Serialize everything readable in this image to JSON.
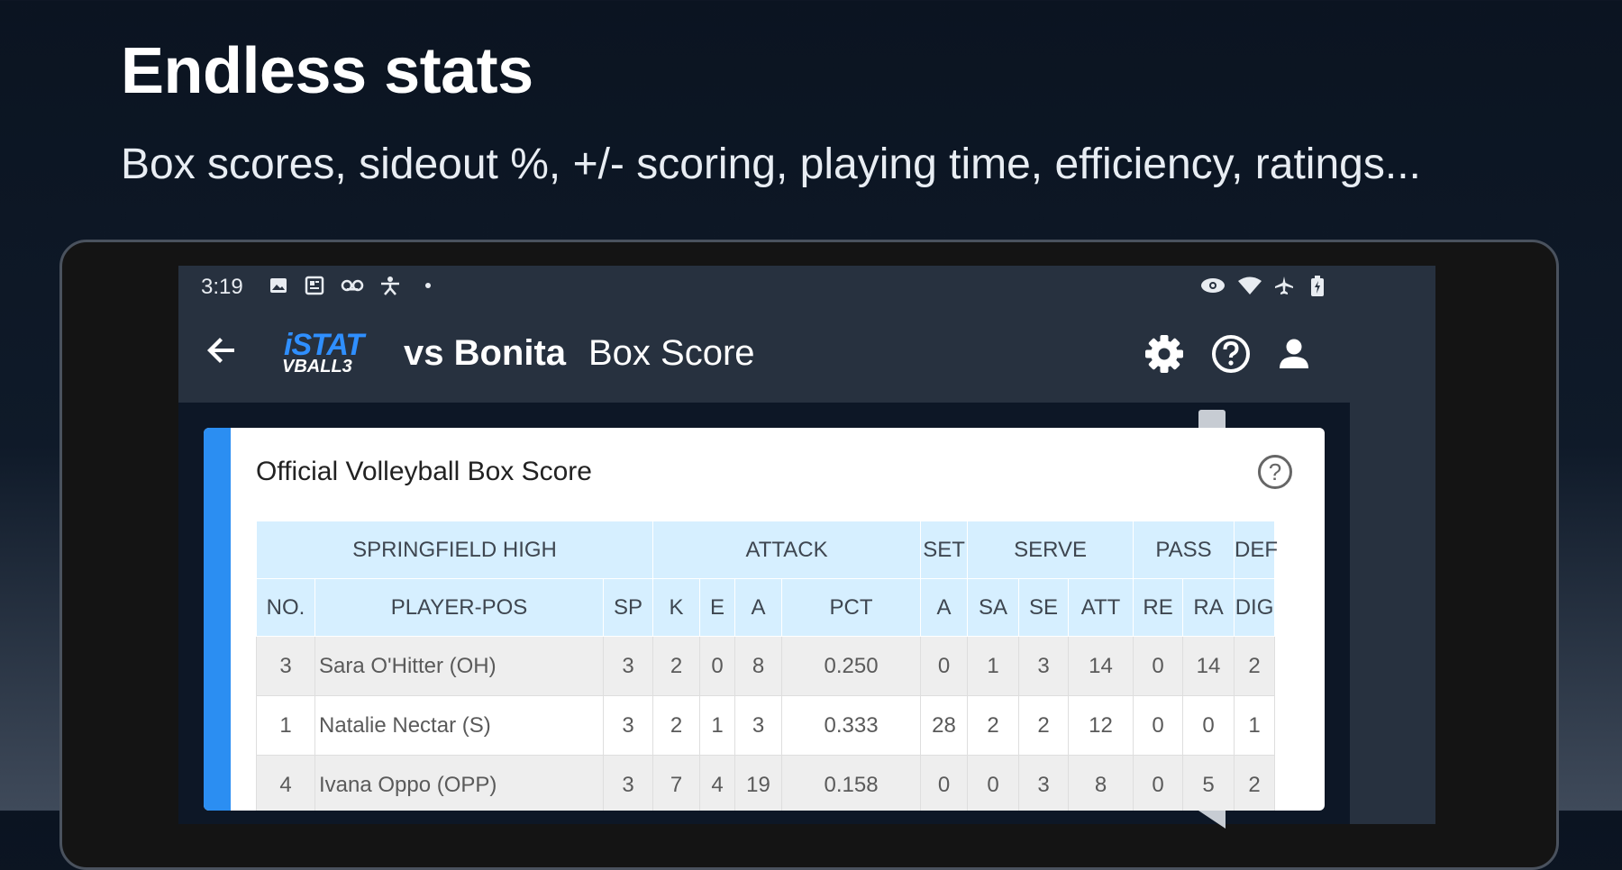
{
  "headline": "Endless stats",
  "subheadline": "Box scores, sideout %, +/- scoring, playing time, efficiency, ratings...",
  "statusbar": {
    "time": "3:19",
    "left_icons": [
      "image-icon",
      "news-icon",
      "voicemail-icon",
      "accessibility-icon",
      "dot-icon"
    ],
    "right_icons": [
      "eye-icon",
      "wifi-icon",
      "airplane-icon",
      "battery-icon"
    ]
  },
  "appbar": {
    "logo_line1": "iSTAT",
    "logo_line2": "VBALL3",
    "opponent": "vs Bonita",
    "title": "Box Score",
    "actions": [
      "settings-icon",
      "help-icon",
      "account-icon"
    ]
  },
  "card": {
    "title": "Official Volleyball Box Score",
    "help_glyph": "?"
  },
  "table": {
    "group_headers": [
      "SPRINGFIELD HIGH",
      "ATTACK",
      "SET",
      "SERVE",
      "PASS",
      "DEF"
    ],
    "columns": [
      "NO.",
      "PLAYER-POS",
      "SP",
      "K",
      "E",
      "A",
      "PCT",
      "A",
      "SA",
      "SE",
      "ATT",
      "RE",
      "RA",
      "DIG"
    ],
    "rows": [
      [
        "3",
        "Sara O'Hitter  (OH)",
        "3",
        "2",
        "0",
        "8",
        "0.250",
        "0",
        "1",
        "3",
        "14",
        "0",
        "14",
        "2"
      ],
      [
        "1",
        "Natalie Nectar  (S)",
        "3",
        "2",
        "1",
        "3",
        "0.333",
        "28",
        "2",
        "2",
        "12",
        "0",
        "0",
        "1"
      ],
      [
        "4",
        "Ivana Oppo  (OPP)",
        "3",
        "7",
        "4",
        "19",
        "0.158",
        "0",
        "0",
        "3",
        "8",
        "0",
        "5",
        "2"
      ]
    ]
  },
  "colors": {
    "accent": "#2b8ef2",
    "header_bg": "#d6efff",
    "appbar_bg": "#27313f",
    "logo_blue": "#2f8fff"
  }
}
